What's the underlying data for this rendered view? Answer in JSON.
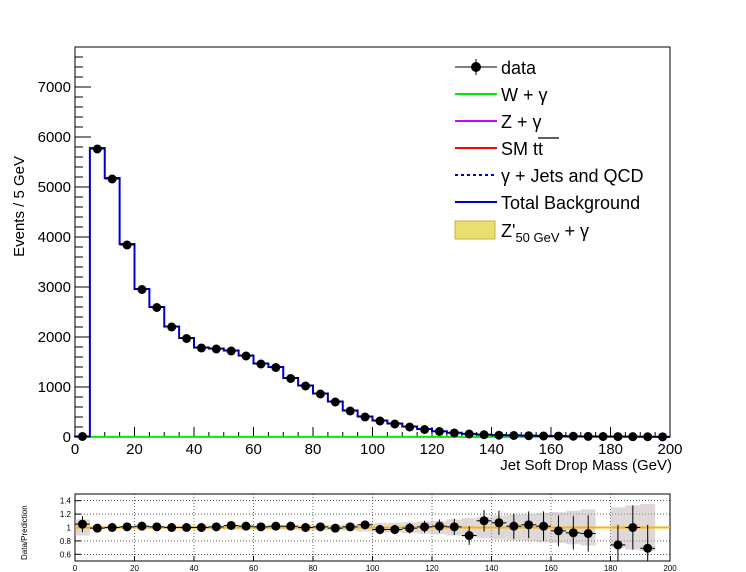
{
  "chart_data": {
    "type": "histogram",
    "main": {
      "xlabel": "Jet Soft Drop Mass (GeV)",
      "ylabel": "Events / 5 GeV",
      "xlim": [
        0,
        200
      ],
      "ylim": [
        0,
        7800
      ],
      "x_ticks": [
        0,
        20,
        40,
        60,
        80,
        100,
        120,
        140,
        160,
        180,
        200
      ],
      "y_ticks": [
        0,
        1000,
        2000,
        3000,
        4000,
        5000,
        6000,
        7000
      ],
      "bin_width": 5,
      "bin_centers": [
        2.5,
        7.5,
        12.5,
        17.5,
        22.5,
        27.5,
        32.5,
        37.5,
        42.5,
        47.5,
        52.5,
        57.5,
        62.5,
        67.5,
        72.5,
        77.5,
        82.5,
        87.5,
        92.5,
        97.5,
        102.5,
        107.5,
        112.5,
        117.5,
        122.5,
        127.5,
        132.5,
        137.5,
        142.5,
        147.5,
        152.5,
        157.5,
        162.5,
        167.5,
        172.5,
        177.5,
        182.5,
        187.5,
        192.5,
        197.5
      ],
      "data": [
        10,
        5760,
        5160,
        3840,
        2950,
        2590,
        2200,
        1970,
        1780,
        1760,
        1720,
        1620,
        1460,
        1390,
        1170,
        1020,
        860,
        700,
        520,
        400,
        320,
        260,
        200,
        150,
        110,
        80,
        60,
        45,
        35,
        30,
        25,
        20,
        18,
        15,
        12,
        10,
        8,
        7,
        5,
        3
      ],
      "total_background": [
        10,
        5780,
        5180,
        3860,
        2960,
        2600,
        2210,
        1980,
        1790,
        1770,
        1730,
        1630,
        1470,
        1400,
        1180,
        1030,
        870,
        710,
        530,
        410,
        330,
        270,
        210,
        160,
        115,
        85,
        62,
        47,
        37,
        32,
        27,
        22,
        19,
        16,
        13,
        11,
        9,
        7,
        5,
        3
      ],
      "w_gamma": [
        2,
        2,
        2,
        2,
        2,
        2,
        2,
        2,
        2,
        2,
        2,
        2,
        2,
        2,
        2,
        2,
        2,
        2,
        2,
        2,
        2,
        2,
        2,
        2,
        2,
        2,
        2,
        2,
        2,
        2,
        2,
        2,
        2,
        2,
        2,
        2,
        2,
        2,
        2,
        2
      ]
    },
    "ratio": {
      "ylabel": "Data/Prediction",
      "ylim": [
        0.5,
        1.5
      ],
      "y_ticks": [
        0.6,
        0.8,
        1,
        1.2,
        1.4
      ],
      "x_ticks": [
        0,
        20,
        40,
        60,
        80,
        100,
        120,
        140,
        160,
        180,
        200
      ],
      "values": [
        1.05,
        0.99,
        1.0,
        1.01,
        1.02,
        1.01,
        1.0,
        1.0,
        1.0,
        1.01,
        1.03,
        1.02,
        1.01,
        1.02,
        1.02,
        1.0,
        1.01,
        0.99,
        1.01,
        1.04,
        0.97,
        0.97,
        0.99,
        1.01,
        1.02,
        1.01,
        0.88,
        1.1,
        1.07,
        1.02,
        1.04,
        1.02,
        0.95,
        0.92,
        0.91,
        0.74,
        1.0,
        0.69
      ],
      "value_x": [
        2.5,
        7.5,
        12.5,
        17.5,
        22.5,
        27.5,
        32.5,
        37.5,
        42.5,
        47.5,
        52.5,
        57.5,
        62.5,
        67.5,
        72.5,
        77.5,
        82.5,
        87.5,
        92.5,
        97.5,
        102.5,
        107.5,
        112.5,
        117.5,
        122.5,
        127.5,
        132.5,
        137.5,
        142.5,
        147.5,
        152.5,
        157.5,
        162.5,
        167.5,
        172.5,
        182.5,
        187.5,
        192.5
      ],
      "errors": [
        0.12,
        0.02,
        0.02,
        0.02,
        0.02,
        0.02,
        0.02,
        0.03,
        0.03,
        0.03,
        0.03,
        0.03,
        0.03,
        0.03,
        0.03,
        0.04,
        0.04,
        0.04,
        0.05,
        0.06,
        0.07,
        0.07,
        0.08,
        0.09,
        0.1,
        0.12,
        0.14,
        0.16,
        0.18,
        0.19,
        0.2,
        0.22,
        0.23,
        0.25,
        0.27,
        0.3,
        0.33,
        0.35
      ]
    },
    "legend": {
      "placement": "top-right",
      "entries": [
        {
          "label": "data",
          "style": "marker",
          "color": "#000000"
        },
        {
          "label": "W + γ",
          "style": "line",
          "color": "#00ee00"
        },
        {
          "label": "Z + γ",
          "style": "line",
          "color": "#cc00ff"
        },
        {
          "label": "SM tt",
          "style": "line",
          "color": "#ff0000"
        },
        {
          "label": "γ + Jets and QCD",
          "style": "dashed",
          "color": "#0000cc"
        },
        {
          "label": "Total Background",
          "style": "line",
          "color": "#0000cc"
        },
        {
          "label": "Z'",
          "sub": "50 GeV",
          "suffix": " + γ",
          "style": "box",
          "color": "#e8e070"
        }
      ]
    }
  }
}
